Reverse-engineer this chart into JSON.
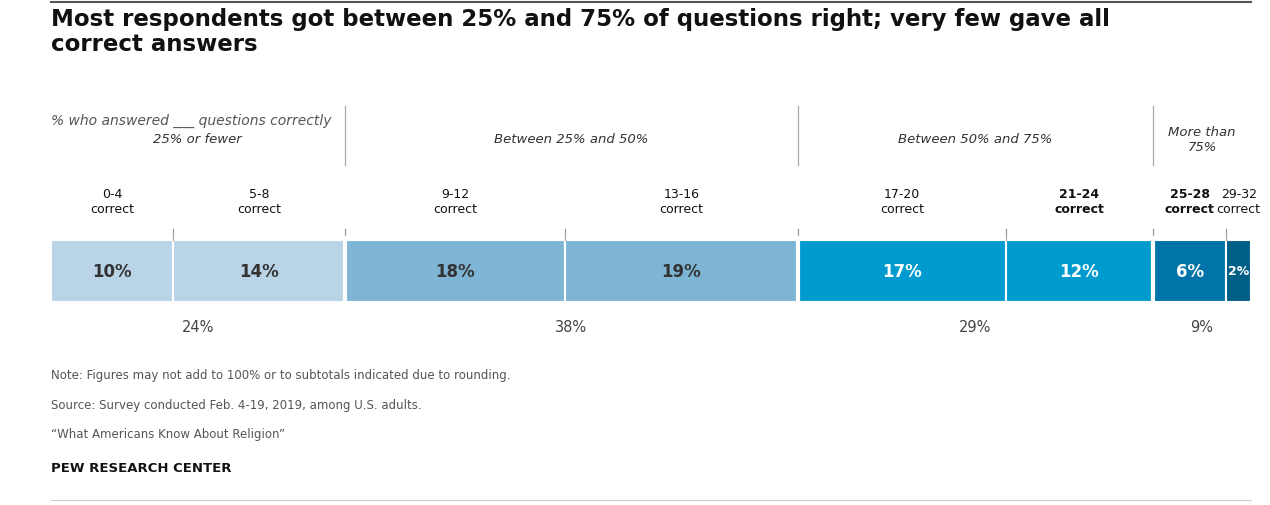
{
  "title": "Most respondents got between 25% and 75% of questions right; very few gave all\ncorrect answers",
  "subtitle": "% who answered ___ questions correctly",
  "bars": [
    {
      "label": "0-4\ncorrect",
      "value": 10,
      "color": "#bad4e7",
      "text_color": "#333333",
      "bold": false
    },
    {
      "label": "5-8\ncorrect",
      "value": 14,
      "color": "#bad4e7",
      "text_color": "#333333",
      "bold": false
    },
    {
      "label": "9-12\ncorrect",
      "value": 18,
      "color": "#7eb5d5",
      "text_color": "#333333",
      "bold": false
    },
    {
      "label": "13-16\ncorrect",
      "value": 19,
      "color": "#7eb5d5",
      "text_color": "#333333",
      "bold": false
    },
    {
      "label": "17-20\ncorrect",
      "value": 17,
      "color": "#009bce",
      "text_color": "#ffffff",
      "bold": false
    },
    {
      "label": "21-24\ncorrect",
      "value": 12,
      "color": "#009bce",
      "text_color": "#ffffff",
      "bold": true
    },
    {
      "label": "25-28\ncorrect",
      "value": 6,
      "color": "#0074a8",
      "text_color": "#ffffff",
      "bold": true
    },
    {
      "label": "29-32\ncorrect",
      "value": 2,
      "color": "#005f87",
      "text_color": "#ffffff",
      "bold": false
    }
  ],
  "groups": [
    {
      "label": "25% or fewer",
      "bar_indices": [
        0,
        1
      ],
      "subtotal": "24%"
    },
    {
      "label": "Between 25% and 50%",
      "bar_indices": [
        2,
        3
      ],
      "subtotal": "38%"
    },
    {
      "label": "Between 50% and 75%",
      "bar_indices": [
        4,
        5
      ],
      "subtotal": "29%"
    },
    {
      "label": "More than\n75%",
      "bar_indices": [
        6,
        7
      ],
      "subtotal": "9%"
    }
  ],
  "note_lines": [
    "Note: Figures may not add to 100% or to subtotals indicated due to rounding.",
    "Source: Survey conducted Feb. 4-19, 2019, among U.S. adults.",
    "“What Americans Know About Religion”"
  ],
  "footer": "PEW RESEARCH CENTER",
  "bg_color": "#ffffff"
}
